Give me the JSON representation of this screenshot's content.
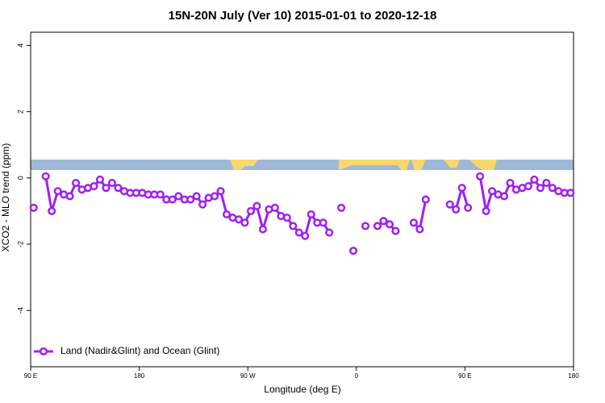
{
  "chart_data": {
    "type": "line",
    "title": "15N-20N July (Ver 10)   2015-01-01 to 2020-12-18",
    "x_label": "Longitude (deg E)",
    "y_label": "XCO2 - MLO trend (ppm)",
    "xlim": [
      90,
      540
    ],
    "ylim": [
      -5.7,
      4.4
    ],
    "xticks": [
      {
        "value": 90,
        "label": "90 E"
      },
      180,
      {
        "value": 270,
        "label": "90 W"
      },
      {
        "value": 360,
        "label": "0"
      },
      {
        "value": 450,
        "label": "90 E"
      },
      {
        "value": 540,
        "label": "180"
      }
    ],
    "yticks": [
      -4,
      -2,
      0,
      2,
      4
    ],
    "legend": "bottom-left",
    "x": [
      92.5,
      97.5,
      102.5,
      107.5,
      112.5,
      117.5,
      122.5,
      127.5,
      132.5,
      137.5,
      142.5,
      147.5,
      152.5,
      157.5,
      162.5,
      167.5,
      172.5,
      177.5,
      182.5,
      187.5,
      192.5,
      197.5,
      202.5,
      207.5,
      212.5,
      217.5,
      222.5,
      227.5,
      232.5,
      237.5,
      242.5,
      247.5,
      252.5,
      257.5,
      262.5,
      267.5,
      272.5,
      277.5,
      282.5,
      287.5,
      292.5,
      297.5,
      302.5,
      307.5,
      312.5,
      317.5,
      322.5,
      327.5,
      332.5,
      337.5,
      342.5,
      347.5,
      352.5,
      357.5,
      362.5,
      367.5,
      372.5,
      377.5,
      382.5,
      387.5,
      392.5,
      397.5,
      402.5,
      407.5,
      412.5,
      417.5,
      422.5,
      427.5,
      432.5,
      437.5,
      442.5,
      447.5,
      452.5,
      457.5,
      462.5,
      467.5,
      472.5,
      477.5,
      482.5,
      487.5,
      492.5,
      497.5,
      502.5,
      507.5,
      512.5,
      517.5,
      522.5,
      527.5,
      532.5,
      537.5
    ],
    "series": [
      {
        "name": "Land (Nadir&Glint) and Ocean (Glint)",
        "color": "#a020f0",
        "values": [
          -0.9,
          null,
          0.05,
          -1.0,
          -0.4,
          -0.5,
          -0.55,
          -0.15,
          -0.35,
          -0.3,
          -0.25,
          -0.05,
          -0.3,
          -0.15,
          -0.3,
          -0.4,
          -0.45,
          -0.45,
          -0.45,
          -0.5,
          -0.5,
          -0.5,
          -0.65,
          -0.65,
          -0.55,
          -0.65,
          -0.65,
          -0.55,
          -0.8,
          -0.6,
          -0.55,
          -0.4,
          -1.1,
          -1.2,
          -1.25,
          -1.35,
          -1.0,
          -0.85,
          -1.55,
          -0.95,
          -0.9,
          -1.15,
          -1.2,
          -1.45,
          -1.65,
          -1.75,
          -1.1,
          -1.35,
          -1.35,
          -1.65,
          null,
          -0.9,
          null,
          -2.2,
          null,
          -1.45,
          null,
          -1.45,
          -1.3,
          -1.4,
          -1.6,
          null,
          null,
          -1.35,
          -1.55,
          -0.65,
          null,
          null,
          null,
          -0.8,
          -0.95,
          -0.3,
          -0.9,
          null,
          0.05,
          -1.0,
          -0.4,
          -0.5,
          -0.55,
          -0.15,
          -0.35,
          -0.3,
          -0.25,
          -0.05,
          -0.3,
          -0.15,
          -0.3,
          -0.4,
          -0.45,
          -0.45
        ]
      }
    ]
  }
}
